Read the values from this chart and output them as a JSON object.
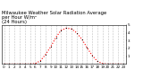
{
  "title": "Milwaukee Weather Solar Radiation Average\nper Hour W/m²\n(24 Hours)",
  "hours": [
    0,
    1,
    2,
    3,
    4,
    5,
    6,
    7,
    8,
    9,
    10,
    11,
    12,
    13,
    14,
    15,
    16,
    17,
    18,
    19,
    20,
    21,
    22,
    23
  ],
  "values": [
    0,
    0,
    0,
    0,
    0,
    0,
    5,
    40,
    120,
    220,
    340,
    430,
    460,
    450,
    400,
    320,
    210,
    110,
    35,
    5,
    0,
    0,
    0,
    0
  ],
  "line_color": "#ff0000",
  "bg_color": "#ffffff",
  "title_fontsize": 3.8,
  "tick_fontsize": 3.0,
  "ylim": [
    0,
    500
  ],
  "ytick_vals": [
    100,
    200,
    300,
    400,
    500
  ],
  "ytick_labels": [
    "1",
    "2",
    "3",
    "4",
    "5"
  ],
  "grid_color": "#bbbbbb",
  "title_color": "#000000",
  "figwidth": 1.6,
  "figheight": 0.87,
  "dpi": 100
}
